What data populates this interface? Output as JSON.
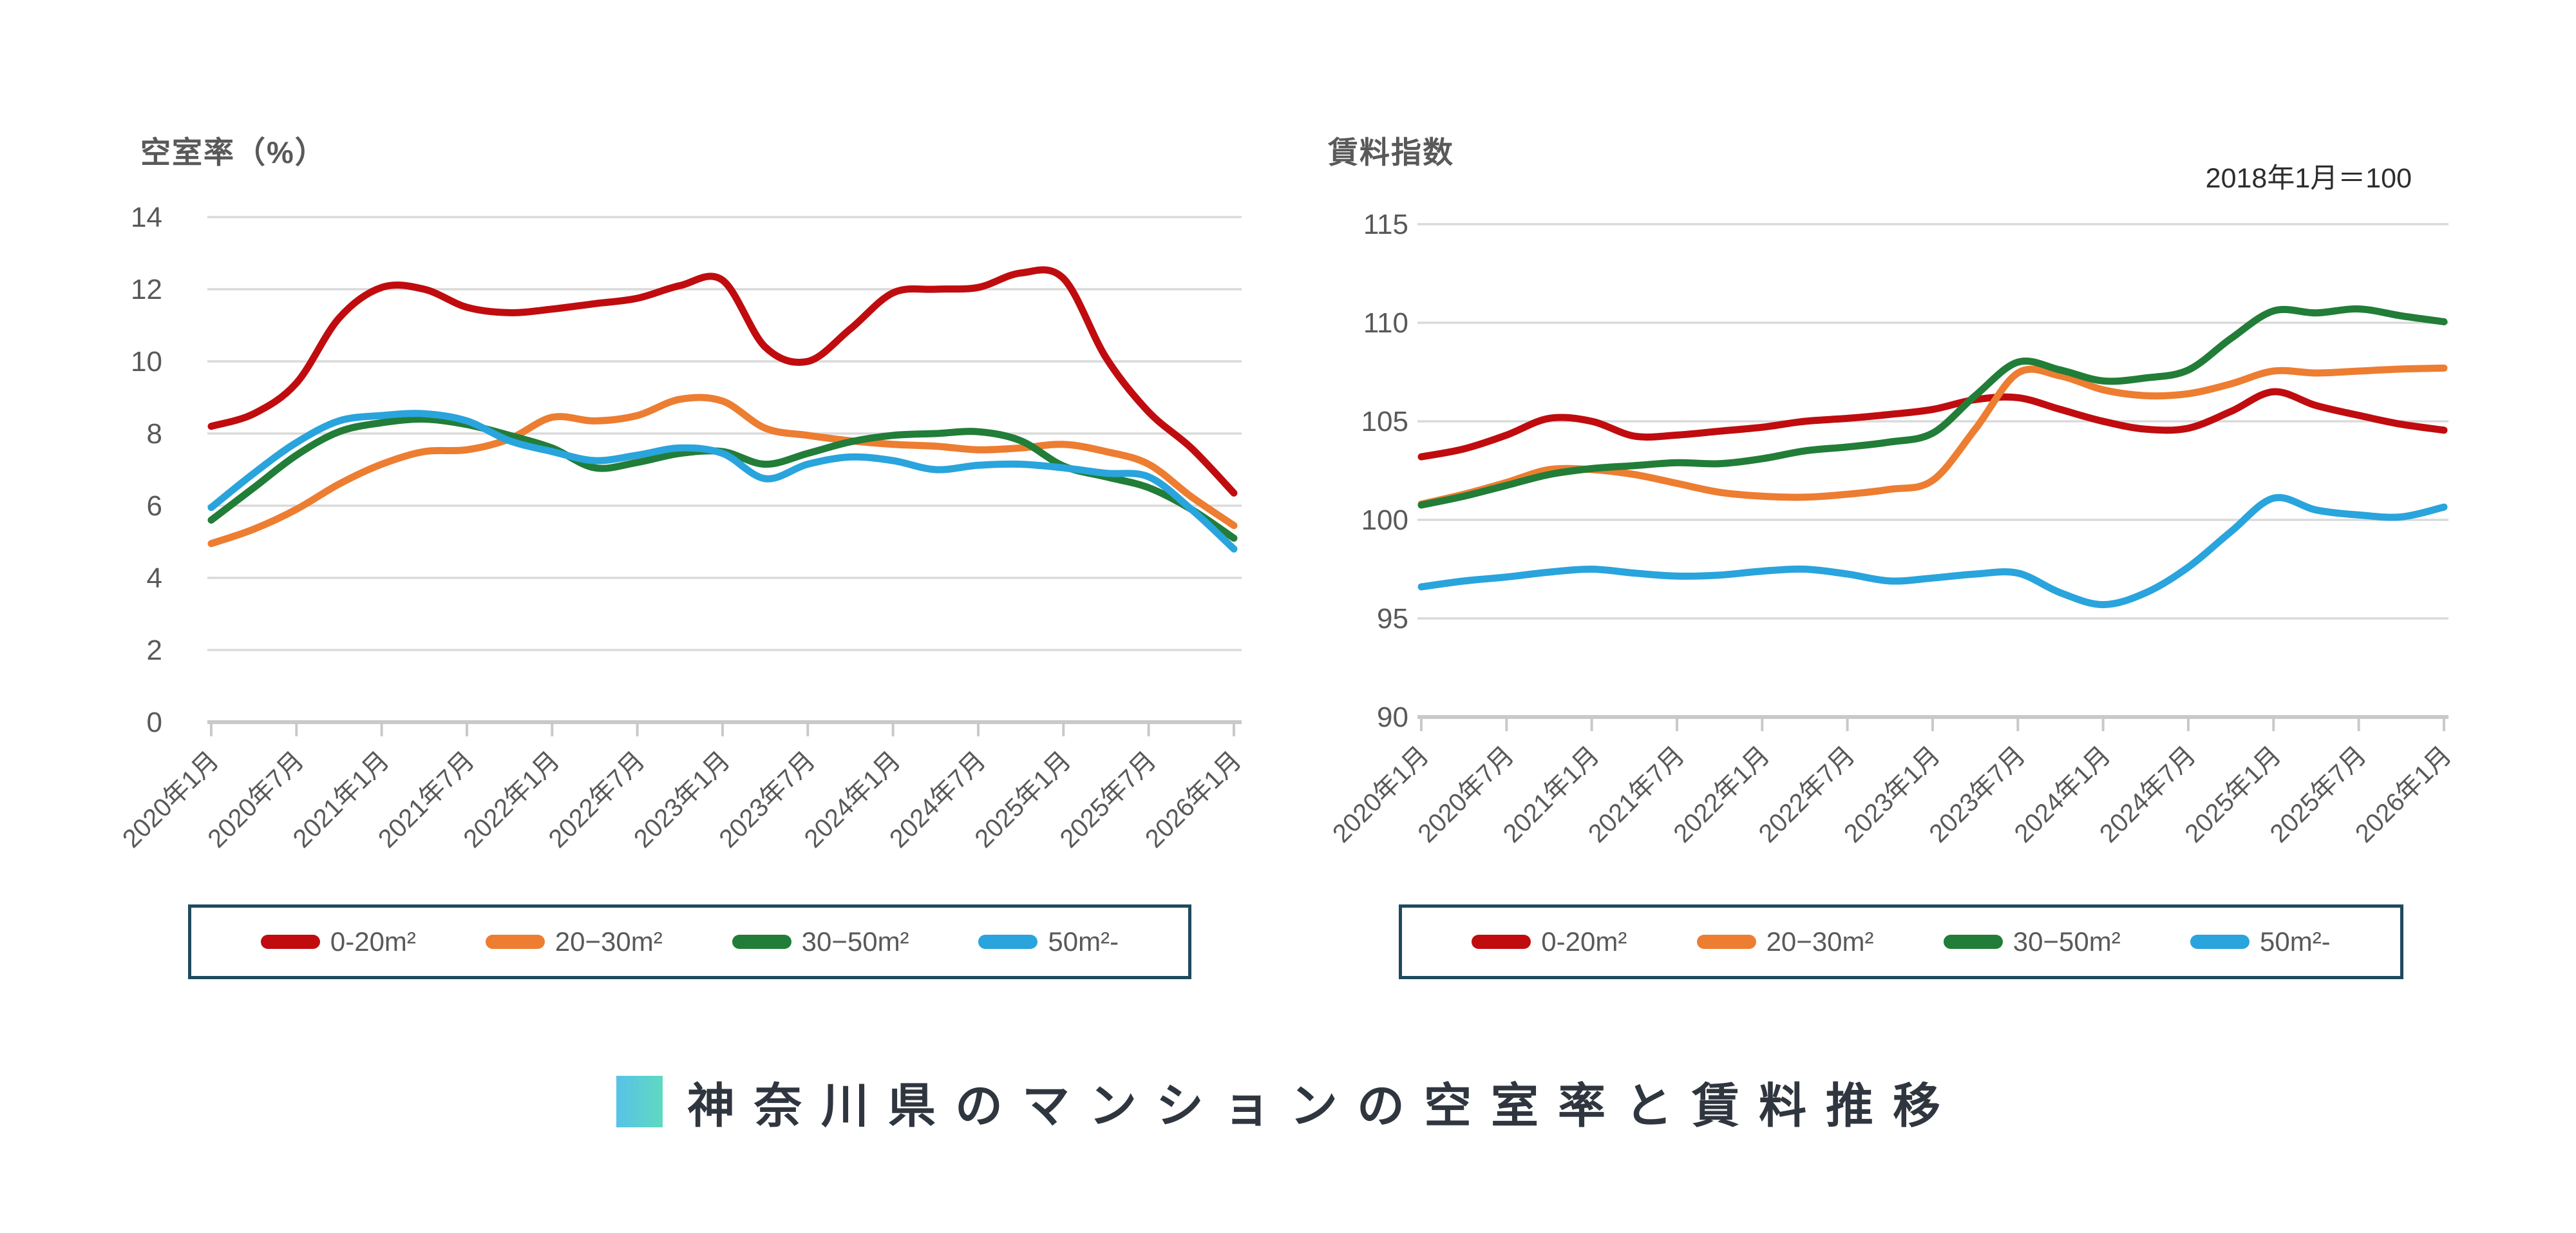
{
  "palette": {
    "grid": "#dadada",
    "axis": "#c9c9c9",
    "tick_label": "#595959",
    "chart_title": "#595959",
    "note_text": "#2d2d2d",
    "legend_border": "#1f4a5e",
    "footer_text": "#30363f",
    "accent_from": "#58c2e8",
    "accent_to": "#5fd9c0"
  },
  "footer": {
    "title": "神奈川県のマンションの空室率と賃料推移"
  },
  "chart_data": [
    {
      "type": "line",
      "title": "空室率（%）",
      "note": "",
      "ylabel": "空室率（%）",
      "ylim": [
        0,
        14
      ],
      "y_ticks": [
        14,
        12,
        10,
        8,
        6,
        4,
        2,
        0
      ],
      "grid": "horizontal",
      "legend_position": "bottom",
      "x": [
        "2020-01",
        "2020-04",
        "2020-07",
        "2020-10",
        "2021-01",
        "2021-04",
        "2021-07",
        "2021-10",
        "2022-01",
        "2022-04",
        "2022-07",
        "2022-10",
        "2023-01",
        "2023-04",
        "2023-07",
        "2023-10",
        "2024-01",
        "2024-04",
        "2024-07",
        "2024-10",
        "2025-01",
        "2025-04",
        "2025-07",
        "2025-10",
        "2026-01"
      ],
      "x_tick_labels": [
        "2020年1月",
        "2020年7月",
        "2021年1月",
        "2021年7月",
        "2022年1月",
        "2022年7月",
        "2023年1月",
        "2023年7月",
        "2024年1月",
        "2024年7月",
        "2025年1月",
        "2025年7月",
        "2026年1月"
      ],
      "series": [
        {
          "name": "0-20m²",
          "color": "#c00c0f",
          "values": [
            8.2,
            8.55,
            9.4,
            11.2,
            12.05,
            12.0,
            11.5,
            11.35,
            11.45,
            11.6,
            11.75,
            12.1,
            12.25,
            10.4,
            10.0,
            10.9,
            11.9,
            12.0,
            12.05,
            12.45,
            12.3,
            10.1,
            8.6,
            7.6,
            6.35
          ]
        },
        {
          "name": "20−30m²",
          "color": "#ed7d31",
          "values": [
            4.95,
            5.35,
            5.9,
            6.6,
            7.15,
            7.5,
            7.55,
            7.85,
            8.45,
            8.35,
            8.5,
            8.95,
            8.9,
            8.15,
            7.95,
            7.8,
            7.7,
            7.65,
            7.55,
            7.6,
            7.7,
            7.5,
            7.15,
            6.25,
            5.45
          ]
        },
        {
          "name": "30−50m²",
          "color": "#217d38",
          "values": [
            5.6,
            6.5,
            7.4,
            8.05,
            8.3,
            8.4,
            8.25,
            7.95,
            7.6,
            7.05,
            7.2,
            7.45,
            7.5,
            7.15,
            7.45,
            7.77,
            7.95,
            8.0,
            8.05,
            7.8,
            7.1,
            6.8,
            6.5,
            5.9,
            5.1
          ]
        },
        {
          "name": "50m²-",
          "color": "#29a4dc",
          "values": [
            5.95,
            6.9,
            7.75,
            8.35,
            8.5,
            8.55,
            8.35,
            7.8,
            7.5,
            7.25,
            7.4,
            7.6,
            7.45,
            6.75,
            7.15,
            7.35,
            7.25,
            7.0,
            7.12,
            7.15,
            7.05,
            6.9,
            6.8,
            5.9,
            4.8
          ]
        }
      ]
    },
    {
      "type": "line",
      "title": "賃料指数",
      "note": "2018年1月＝100",
      "ylabel": "賃料指数",
      "ylim": [
        90,
        115
      ],
      "y_ticks": [
        115,
        110,
        105,
        100,
        95,
        90
      ],
      "grid": "horizontal",
      "legend_position": "bottom",
      "x": [
        "2020-01",
        "2020-04",
        "2020-07",
        "2020-10",
        "2021-01",
        "2021-04",
        "2021-07",
        "2021-10",
        "2022-01",
        "2022-04",
        "2022-07",
        "2022-10",
        "2023-01",
        "2023-04",
        "2023-07",
        "2023-10",
        "2024-01",
        "2024-04",
        "2024-07",
        "2024-10",
        "2025-01",
        "2025-04",
        "2025-07",
        "2025-10",
        "2026-01"
      ],
      "x_tick_labels": [
        "2020年1月",
        "2020年7月",
        "2021年1月",
        "2021年7月",
        "2022年1月",
        "2022年7月",
        "2023年1月",
        "2023年7月",
        "2024年1月",
        "2024年7月",
        "2025年1月",
        "2025年7月",
        "2026年1月"
      ],
      "series": [
        {
          "name": "0-20m²",
          "color": "#c00c0f",
          "values": [
            103.2,
            103.6,
            104.3,
            105.15,
            105.0,
            104.25,
            104.3,
            104.5,
            104.7,
            105.0,
            105.15,
            105.35,
            105.6,
            106.1,
            106.2,
            105.6,
            105.0,
            104.6,
            104.65,
            105.5,
            106.5,
            105.8,
            105.3,
            104.85,
            104.55
          ]
        },
        {
          "name": "20−30m²",
          "color": "#ed7d31",
          "values": [
            100.8,
            101.3,
            101.9,
            102.55,
            102.55,
            102.3,
            101.85,
            101.4,
            101.2,
            101.15,
            101.3,
            101.55,
            102.0,
            104.6,
            107.45,
            107.3,
            106.6,
            106.3,
            106.4,
            106.9,
            107.55,
            107.45,
            107.55,
            107.65,
            107.7
          ]
        },
        {
          "name": "30−50m²",
          "color": "#217d38",
          "values": [
            100.75,
            101.2,
            101.75,
            102.3,
            102.6,
            102.75,
            102.9,
            102.85,
            103.1,
            103.5,
            103.7,
            103.95,
            104.4,
            106.3,
            108.0,
            107.6,
            107.05,
            107.2,
            107.6,
            109.2,
            110.6,
            110.5,
            110.7,
            110.35,
            110.05
          ]
        },
        {
          "name": "50m²-",
          "color": "#29a4dc",
          "values": [
            96.6,
            96.9,
            97.1,
            97.35,
            97.5,
            97.3,
            97.15,
            97.2,
            97.4,
            97.5,
            97.25,
            96.9,
            97.05,
            97.25,
            97.3,
            96.3,
            95.7,
            96.3,
            97.6,
            99.4,
            101.1,
            100.5,
            100.25,
            100.15,
            100.65
          ]
        }
      ]
    }
  ]
}
